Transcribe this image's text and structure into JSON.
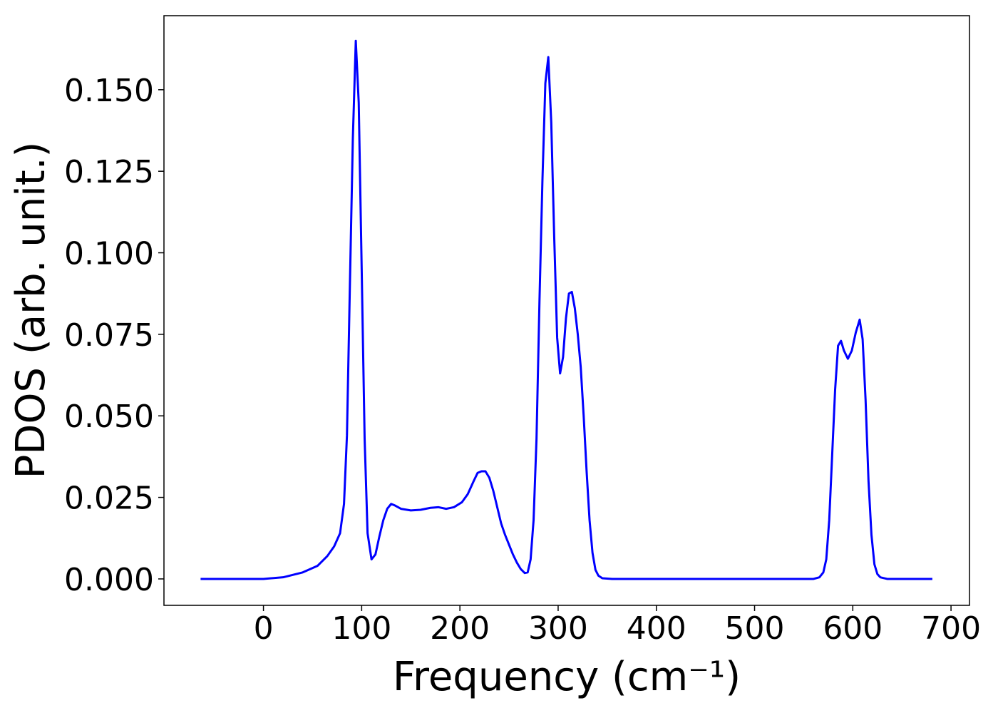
{
  "chart_data": {
    "type": "line",
    "xlabel": "Frequency (cm⁻¹)",
    "ylabel": "PDOS (arb. unit.)",
    "xlim": [
      -101.3,
      718.8
    ],
    "ylim": [
      -0.0081,
      0.1727
    ],
    "xticks": [
      0,
      100,
      200,
      300,
      400,
      500,
      600,
      700
    ],
    "yticks": [
      {
        "value": 0,
        "label": "0.000"
      },
      {
        "value": 0.025,
        "label": "0.025"
      },
      {
        "value": 0.05,
        "label": "0.050"
      },
      {
        "value": 0.075,
        "label": "0.075"
      },
      {
        "value": 0.1,
        "label": "0.100"
      },
      {
        "value": 0.125,
        "label": "0.125"
      },
      {
        "value": 0.15,
        "label": "0.150"
      }
    ],
    "grid": false,
    "x": [
      -64,
      0,
      20,
      40,
      55,
      65,
      72,
      78,
      82,
      85,
      88,
      91,
      94,
      97,
      100,
      103,
      106,
      110,
      114,
      118,
      122,
      126,
      130,
      134,
      140,
      150,
      160,
      170,
      178,
      186,
      194,
      202,
      208,
      214,
      218,
      222,
      226,
      230,
      234,
      238,
      242,
      246,
      250,
      254,
      258,
      262,
      266,
      269,
      272,
      275,
      278,
      281,
      284,
      287,
      290,
      293,
      296,
      299,
      302,
      305,
      308,
      311,
      314,
      317,
      320,
      323,
      326,
      329,
      332,
      335,
      338,
      341,
      345,
      355,
      560,
      566,
      570,
      573,
      576,
      579,
      582,
      585,
      588,
      591,
      595,
      599,
      603,
      607,
      610,
      613,
      616,
      619,
      622,
      625,
      628,
      635,
      681
    ],
    "series": [
      {
        "color": "#0000ff",
        "values": [
          0,
          0,
          0.0005,
          0.002,
          0.004,
          0.007,
          0.01,
          0.014,
          0.023,
          0.044,
          0.09,
          0.135,
          0.165,
          0.146,
          0.095,
          0.043,
          0.014,
          0.006,
          0.0075,
          0.013,
          0.018,
          0.0215,
          0.023,
          0.0225,
          0.0215,
          0.021,
          0.0212,
          0.0218,
          0.022,
          0.0215,
          0.022,
          0.0235,
          0.026,
          0.03,
          0.0325,
          0.033,
          0.033,
          0.031,
          0.027,
          0.022,
          0.017,
          0.0135,
          0.0105,
          0.0075,
          0.005,
          0.003,
          0.0018,
          0.002,
          0.006,
          0.018,
          0.043,
          0.085,
          0.122,
          0.152,
          0.16,
          0.14,
          0.105,
          0.074,
          0.063,
          0.068,
          0.08,
          0.0875,
          0.088,
          0.083,
          0.075,
          0.065,
          0.05,
          0.033,
          0.018,
          0.008,
          0.0028,
          0.001,
          0.0002,
          0,
          0,
          0.0005,
          0.002,
          0.006,
          0.018,
          0.038,
          0.058,
          0.0715,
          0.073,
          0.07,
          0.0675,
          0.07,
          0.0755,
          0.0795,
          0.0735,
          0.055,
          0.03,
          0.0135,
          0.0045,
          0.0015,
          0.0005,
          0,
          0
        ]
      }
    ]
  }
}
